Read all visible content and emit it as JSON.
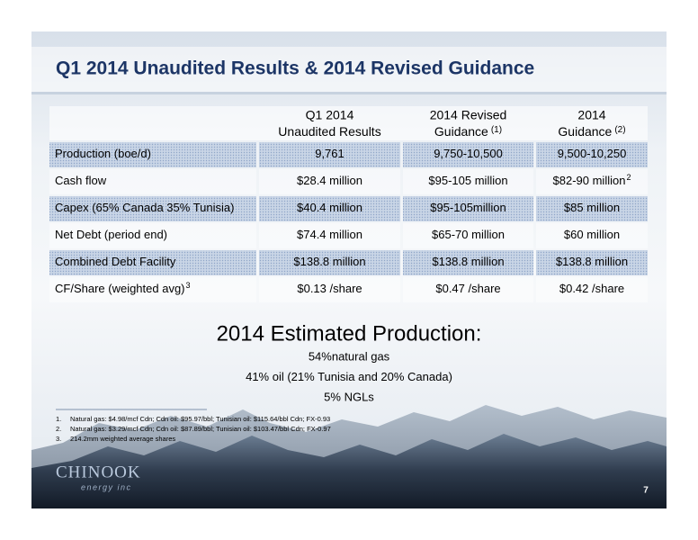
{
  "title": "Q1 2014 Unaudited Results & 2014 Revised Guidance",
  "table": {
    "header": [
      {
        "line1": "Q1 2014",
        "line2": "Unaudited Results"
      },
      {
        "line1": "2014 Revised",
        "line2": "Guidance",
        "sup": "(1)"
      },
      {
        "line1": "2014",
        "line2": "Guidance",
        "sup": "(2)"
      }
    ],
    "rows": [
      [
        "Production (boe/d)",
        "9,761",
        "9,750-10,500",
        "9,500-10,250"
      ],
      [
        "Cash flow",
        "$28.4 million",
        "$95-105 million",
        {
          "text": "$82-90 million",
          "sup": "2"
        }
      ],
      [
        "Capex (65% Canada 35% Tunisia)",
        "$40.4 million",
        "$95-105million",
        "$85 million"
      ],
      [
        "Net Debt (period end)",
        "$74.4 million",
        "$65-70 million",
        "$60 million"
      ],
      [
        "Combined Debt Facility",
        "$138.8 million",
        "$138.8 million",
        "$138.8 million"
      ],
      [
        {
          "text": "CF/Share (weighted avg)",
          "sup": "3"
        },
        "$0.13 /share",
        "$0.47 /share",
        "$0.42 /share"
      ]
    ]
  },
  "production": {
    "heading": "2014 Estimated Production:",
    "lines": [
      "54%natural gas",
      "41% oil (21% Tunisia and 20% Canada)",
      "5% NGLs"
    ]
  },
  "footnotes": [
    {
      "num": "1.",
      "text": "Natural gas: $4.98/mcf Cdn; Cdn oil: $95.97/bbl; Tunisian oil: $115.64/bbl Cdn;  FX-0.93"
    },
    {
      "num": "2.",
      "text": "Natural gas: $3.29/mcf Cdn; Cdn oil: $87.89/bbl; Tunisian oil: $103.47/bbl Cdn;  FX-0.97"
    },
    {
      "num": "3.",
      "text": "214.2mm weighted average shares"
    }
  ],
  "logo": {
    "name": "CHINOOK",
    "tagline": "energy inc"
  },
  "page_number": "7"
}
